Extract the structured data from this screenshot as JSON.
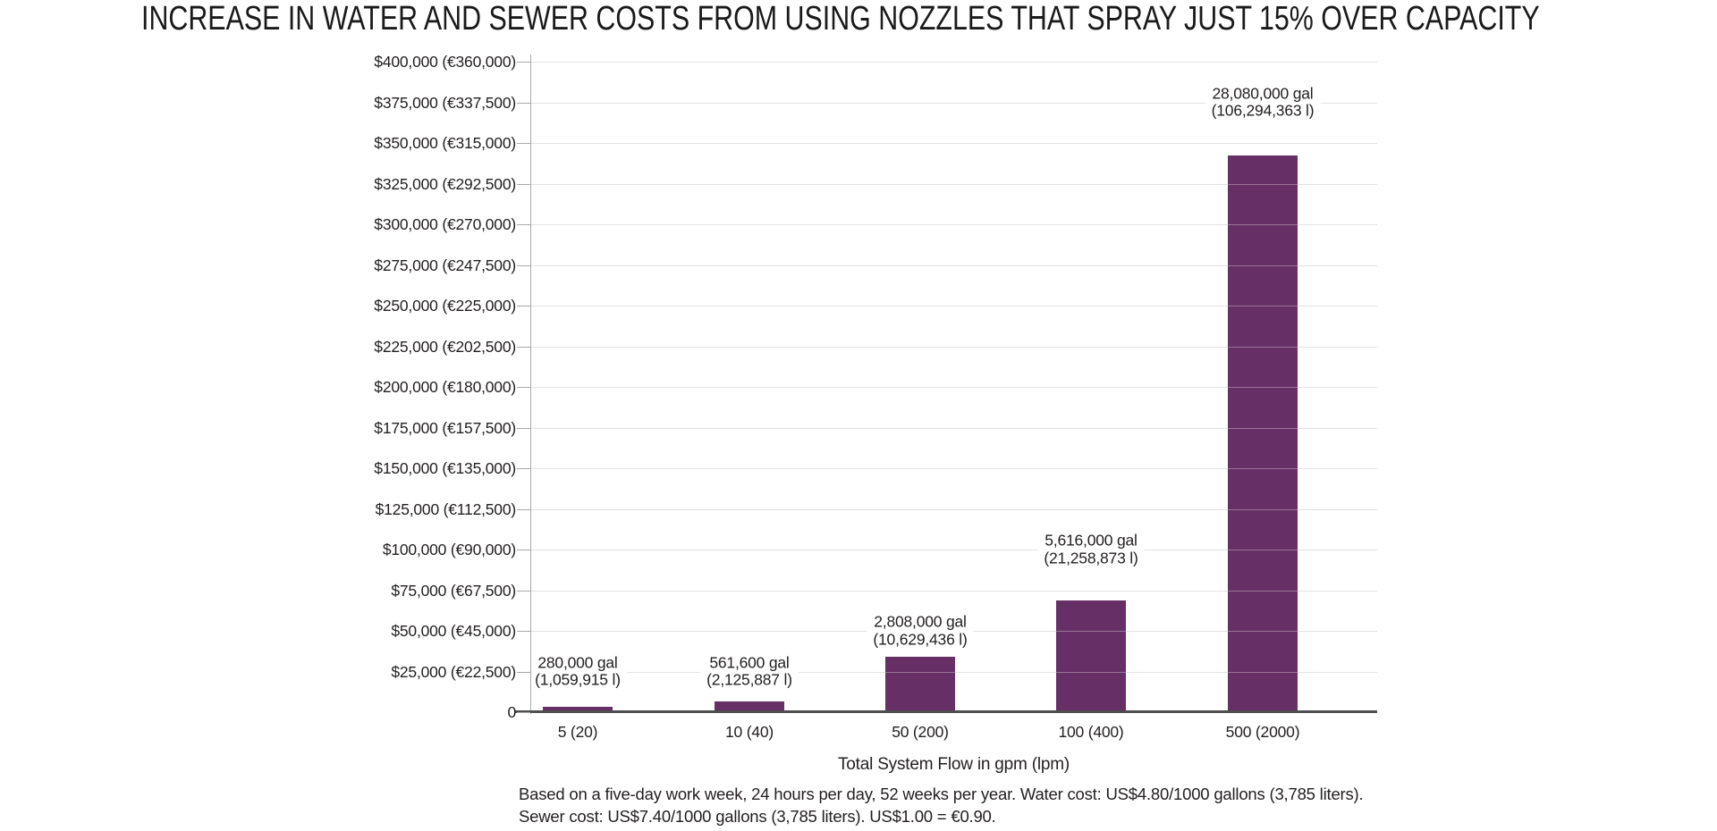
{
  "chart_data": {
    "type": "bar",
    "title": "INCREASE IN WATER AND SEWER COSTS FROM USING NOZZLES THAT SPRAY JUST 15% OVER CAPACITY",
    "categories": [
      "5 (20)",
      "10 (40)",
      "50 (200)",
      "100 (400)",
      "500 (2000)"
    ],
    "values": [
      3416,
      6852,
      34258,
      68515,
      342576
    ],
    "bar_labels": [
      [
        "280,000 gal",
        "(1,059,915 l)"
      ],
      [
        "561,600 gal",
        "(2,125,887 l)"
      ],
      [
        "2,808,000 gal",
        "(10,629,436 l)"
      ],
      [
        "5,616,000 gal",
        "(21,258,873 l)"
      ],
      [
        "28,080,000 gal",
        "(106,294,363 l)"
      ]
    ],
    "xlabel": "Total System Flow in gpm (lpm)",
    "ylabel": "",
    "ylim": [
      0,
      400000
    ],
    "y_tick_step": 25000,
    "grid": true,
    "legend": false,
    "bar_color": "#662f66",
    "y_ticks": [
      "$400,000 (€360,000)",
      "$375,000 (€337,500)",
      "$350,000 (€315,000)",
      "$325,000 (€292,500)",
      "$300,000 (€270,000)",
      "$275,000 (€247,500)",
      "$250,000 (€225,000)",
      "$225,000 (€202,500)",
      "$200,000 (€180,000)",
      "$175,000 (€157,500)",
      "$150,000 (€135,000)",
      "$125,000 (€112,500)",
      "$100,000 (€90,000)",
      "$75,000 (€67,500)",
      "$50,000 (€45,000)",
      "$25,000 (€22,500)",
      "0"
    ],
    "footnote_line1": "Based on a five-day work week, 24 hours per day, 52 weeks per year. Water cost: US$4.80/1000 gallons (3,785 liters).",
    "footnote_line2": "Sewer cost: US$7.40/1000 gallons (3,785 liters). US$1.00 = €0.90."
  }
}
